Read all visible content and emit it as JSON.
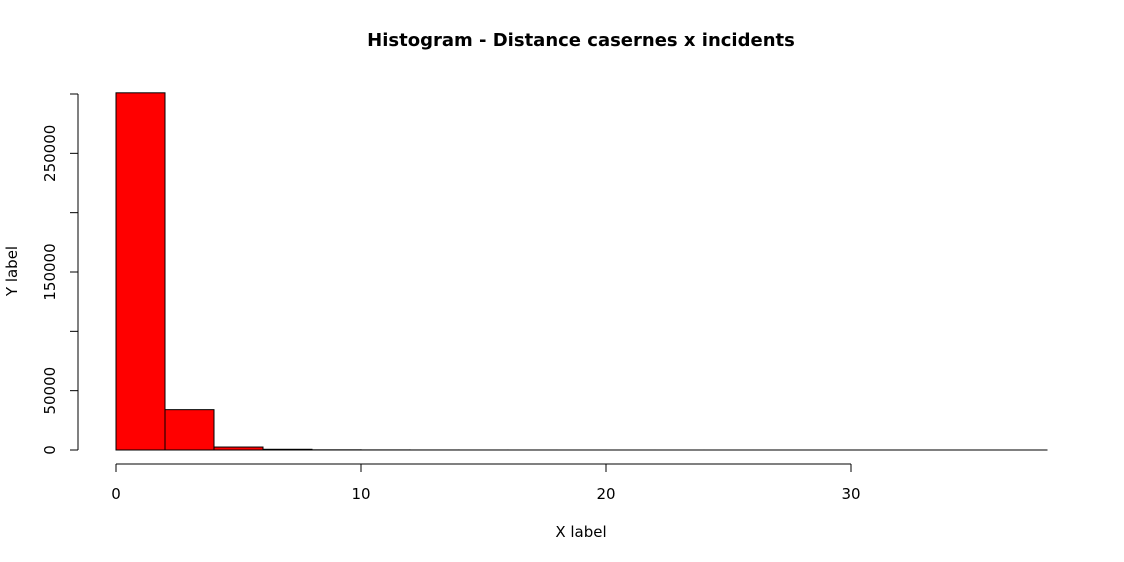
{
  "chart_data": {
    "type": "bar",
    "subtype": "histogram",
    "title": "Histogram - Distance casernes x incidents",
    "xlabel": "X label",
    "ylabel": "Y label",
    "bin_edges": [
      0,
      2,
      4,
      6,
      8,
      10,
      12,
      14,
      16,
      18,
      20,
      22,
      24,
      26,
      28,
      30,
      32,
      34,
      36,
      38
    ],
    "values": [
      301000,
      34000,
      2500,
      600,
      150,
      80,
      40,
      25,
      15,
      10,
      8,
      6,
      5,
      4,
      3,
      3,
      2,
      2,
      1
    ],
    "xlim": [
      0,
      38
    ],
    "ylim": [
      0,
      300000
    ],
    "x_ticks": [
      0,
      10,
      20,
      30
    ],
    "y_ticks": [
      0,
      50000,
      100000,
      150000,
      200000,
      250000,
      300000
    ],
    "y_tick_labels": [
      "0",
      "50000",
      "",
      "150000",
      "",
      "250000",
      ""
    ],
    "bar_color": "#ff0000",
    "grid": false,
    "legend": "none"
  }
}
